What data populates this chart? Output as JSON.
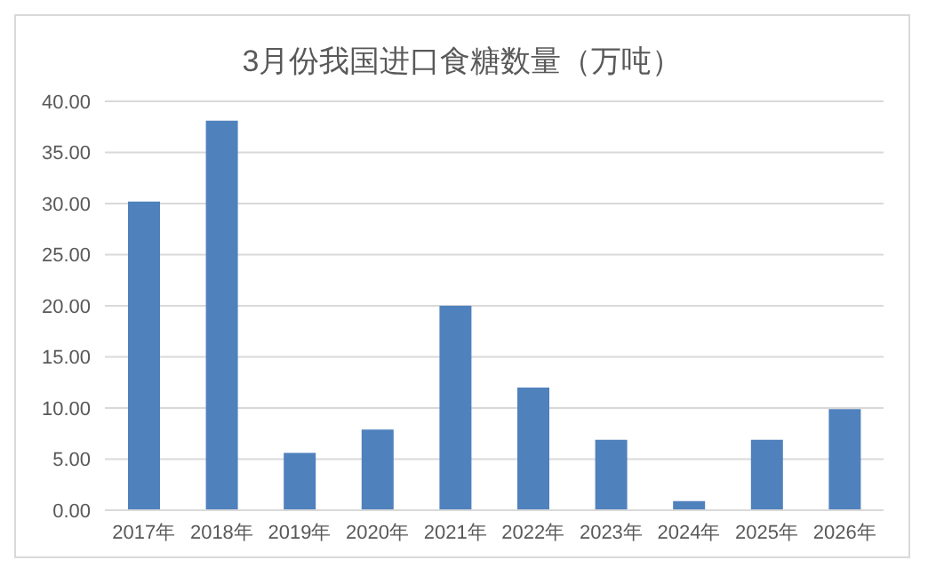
{
  "chart_data": {
    "type": "bar",
    "title": "3月份我国进口食糖数量（万吨）",
    "categories": [
      "2017年",
      "2018年",
      "2019年",
      "2020年",
      "2021年",
      "2022年",
      "2023年",
      "2024年",
      "2025年",
      "2026年"
    ],
    "values": [
      30.2,
      38.1,
      5.6,
      7.9,
      20.0,
      12.0,
      6.9,
      0.9,
      6.9,
      9.9
    ],
    "color": "#4f81bd",
    "ylim": [
      0,
      40
    ],
    "yticks": [
      {
        "value": 0,
        "label": "0.00"
      },
      {
        "value": 5,
        "label": "5.00"
      },
      {
        "value": 10,
        "label": "10.00"
      },
      {
        "value": 15,
        "label": "15.00"
      },
      {
        "value": 20,
        "label": "20.00"
      },
      {
        "value": 25,
        "label": "25.00"
      },
      {
        "value": 30,
        "label": "30.00"
      },
      {
        "value": 35,
        "label": "35.00"
      },
      {
        "value": 40,
        "label": "40.00"
      }
    ],
    "grid": "y",
    "legend": false
  }
}
